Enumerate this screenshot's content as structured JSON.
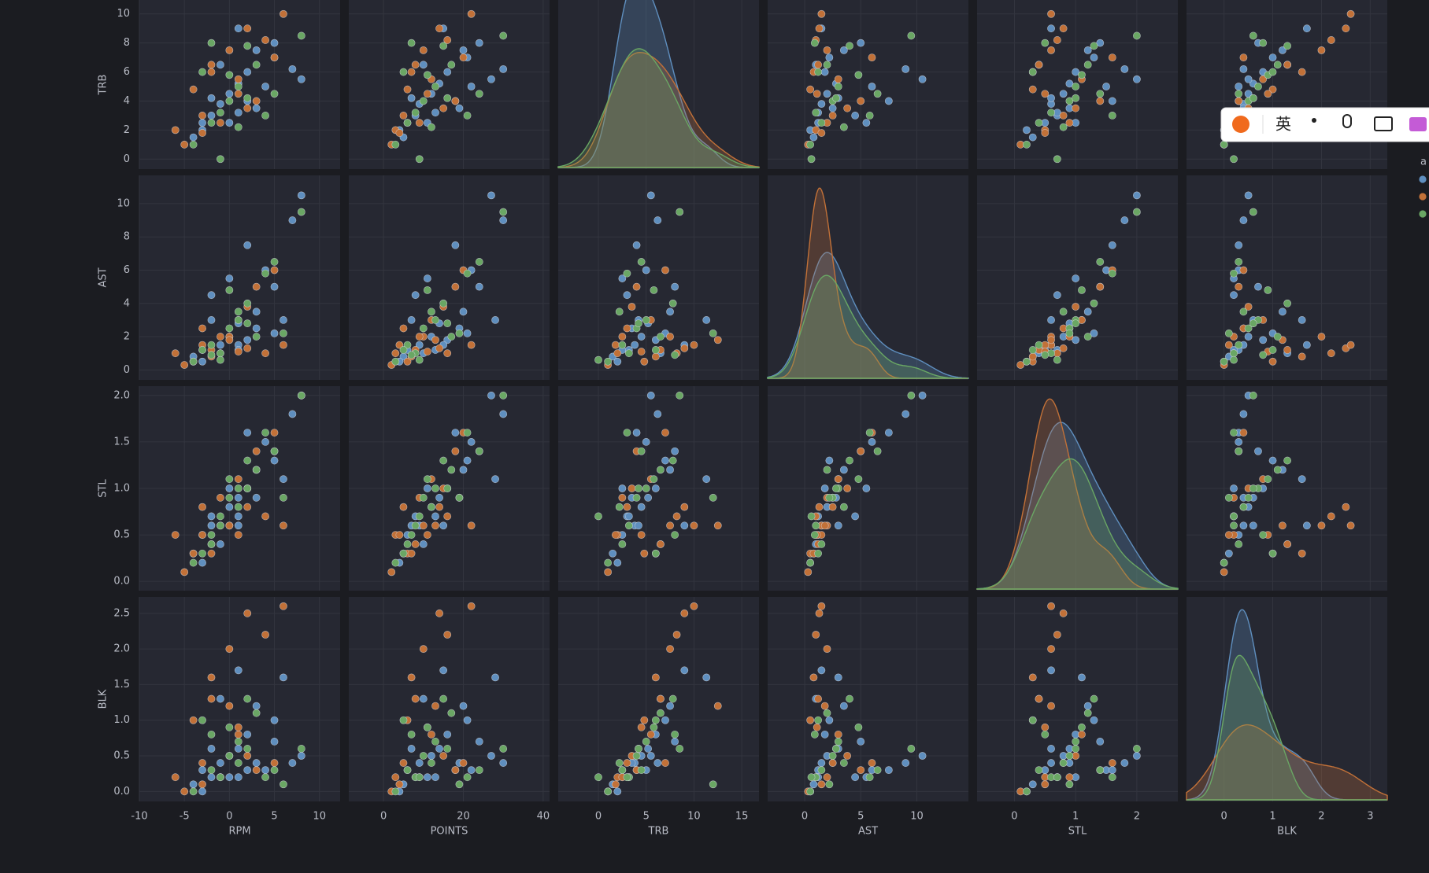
{
  "chart_data": {
    "type": "scatter",
    "diagonal": "kde",
    "grid": true,
    "legend_title": "a",
    "variables": [
      {
        "label": "RPM",
        "xlim": [
          -10,
          12.3
        ],
        "xticks": [
          -10,
          -5,
          0,
          5,
          10
        ]
      },
      {
        "label": "POINTS",
        "xlim": [
          -8.7,
          41.6
        ],
        "xticks": [
          0,
          20,
          40
        ]
      },
      {
        "label": "TRB",
        "xlim": [
          -4.2,
          16.8
        ],
        "xticks": [
          0,
          5,
          10,
          15
        ],
        "ylim": [
          -0.69,
          13.4
        ],
        "yticks": [
          0,
          2,
          4,
          6,
          8,
          10
        ]
      },
      {
        "label": "AST",
        "xlim": [
          -3.3,
          14.6
        ],
        "xticks": [
          0,
          5,
          10
        ],
        "ylim": [
          -0.6,
          11.7
        ],
        "yticks": [
          0,
          2,
          4,
          6,
          8,
          10
        ]
      },
      {
        "label": "STL",
        "xlim": [
          -0.61,
          2.67
        ],
        "xticks": [
          0,
          1,
          2
        ],
        "ylim": [
          -0.1,
          2.1
        ],
        "yticks": [
          {
            "value": 0,
            "label": "0.0"
          },
          0.5,
          {
            "value": 1,
            "label": "1.0"
          },
          1.5,
          {
            "value": 2,
            "label": "2.0"
          }
        ]
      },
      {
        "label": "BLK",
        "xlim": [
          -0.77,
          3.35
        ],
        "xticks": [
          0,
          1,
          2,
          3
        ],
        "ylim": [
          -0.14,
          2.73
        ],
        "yticks": [
          {
            "value": 0,
            "label": "0.0"
          },
          0.5,
          {
            "value": 1,
            "label": "1.0"
          },
          1.5,
          {
            "value": 2,
            "label": "2.0"
          },
          2.5
        ]
      }
    ],
    "series": [
      {
        "color": "#5f8fbf",
        "values": [
          [
            -3,
            6,
            2.5,
            1.2,
            0.5,
            0.3
          ],
          [
            -1,
            9,
            3.8,
            1.5,
            0.6,
            0.4
          ],
          [
            0,
            12,
            4.5,
            2.0,
            0.8,
            0.5
          ],
          [
            1,
            14,
            5.2,
            2.8,
            0.9,
            0.6
          ],
          [
            2,
            16,
            6.0,
            1.8,
            1.0,
            0.8
          ],
          [
            -2,
            8,
            3.0,
            4.5,
            0.7,
            0.2
          ],
          [
            3,
            20,
            7.5,
            3.5,
            1.2,
            1.2
          ],
          [
            5,
            24,
            8.0,
            5.0,
            1.4,
            0.7
          ],
          [
            6,
            28,
            11.3,
            3.0,
            1.1,
            1.6
          ],
          [
            7,
            30,
            6.2,
            9.0,
            1.8,
            0.4
          ],
          [
            4,
            22,
            5.0,
            6.0,
            1.5,
            0.3
          ],
          [
            -4,
            5,
            1.5,
            0.8,
            0.3,
            0.1
          ],
          [
            0,
            11,
            2.5,
            5.5,
            1.0,
            0.2
          ],
          [
            2,
            18,
            4.0,
            7.5,
            1.6,
            0.3
          ],
          [
            8,
            27,
            5.5,
            10.5,
            2.0,
            0.5
          ],
          [
            -1,
            10,
            6.5,
            1.0,
            0.4,
            1.3
          ],
          [
            1,
            15,
            9.0,
            1.5,
            0.6,
            1.7
          ],
          [
            -3,
            4,
            2.0,
            0.5,
            0.2,
            0.0
          ],
          [
            3,
            19,
            3.5,
            2.5,
            0.9,
            0.4
          ],
          [
            -2,
            7,
            4.2,
            3.0,
            0.6,
            0.6
          ],
          [
            5,
            21,
            7.0,
            2.2,
            1.3,
            1.0
          ],
          [
            1,
            13,
            3.2,
            1.2,
            0.7,
            0.2
          ]
        ]
      },
      {
        "color": "#c27138",
        "values": [
          [
            -6,
            3,
            2.0,
            1.0,
            0.5,
            0.2
          ],
          [
            -4,
            6,
            4.8,
            0.5,
            0.3,
            1.0
          ],
          [
            -2,
            8,
            6.5,
            1.2,
            0.4,
            1.3
          ],
          [
            0,
            10,
            7.5,
            2.0,
            0.6,
            2.0
          ],
          [
            2,
            14,
            9.0,
            1.3,
            0.8,
            2.5
          ],
          [
            6,
            22,
            10.0,
            1.5,
            0.6,
            2.6
          ],
          [
            4,
            16,
            8.2,
            1.0,
            0.7,
            2.2
          ],
          [
            -3,
            5,
            3.0,
            2.5,
            0.8,
            0.4
          ],
          [
            1,
            12,
            5.5,
            3.0,
            1.1,
            0.8
          ],
          [
            3,
            18,
            4.0,
            5.0,
            1.4,
            0.3
          ],
          [
            -1,
            9,
            2.5,
            2.0,
            0.9,
            0.2
          ],
          [
            -5,
            2,
            1.0,
            0.3,
            0.1,
            0.0
          ],
          [
            0,
            13,
            12.5,
            1.8,
            0.6,
            1.2
          ],
          [
            2,
            15,
            3.5,
            3.8,
            1.0,
            0.5
          ],
          [
            -2,
            7,
            6.0,
            0.8,
            0.3,
            1.6
          ],
          [
            5,
            20,
            7.0,
            6.0,
            1.6,
            0.4
          ],
          [
            -3,
            4,
            1.8,
            1.5,
            0.5,
            0.1
          ],
          [
            1,
            11,
            4.5,
            1.1,
            0.5,
            0.9
          ]
        ]
      },
      {
        "color": "#6aa764",
        "values": [
          [
            -2,
            6,
            2.5,
            1.5,
            0.4,
            0.3
          ],
          [
            0,
            10,
            4.0,
            2.5,
            0.9,
            0.5
          ],
          [
            1,
            13,
            5.0,
            3.0,
            1.0,
            0.7
          ],
          [
            3,
            17,
            6.5,
            2.0,
            1.2,
            1.1
          ],
          [
            -1,
            8,
            3.2,
            1.0,
            0.6,
            0.2
          ],
          [
            8,
            30,
            8.5,
            9.5,
            2.0,
            0.6
          ],
          [
            5,
            24,
            4.5,
            6.5,
            1.4,
            0.3
          ],
          [
            2,
            15,
            7.8,
            4.0,
            1.3,
            1.3
          ],
          [
            -4,
            3,
            1.0,
            0.5,
            0.2,
            0.0
          ],
          [
            0,
            11,
            5.8,
            4.8,
            1.1,
            0.9
          ],
          [
            4,
            21,
            3.0,
            5.8,
            1.6,
            0.2
          ],
          [
            -2,
            7,
            8.0,
            0.9,
            0.5,
            0.8
          ],
          [
            1,
            12,
            2.2,
            3.5,
            0.8,
            0.4
          ],
          [
            6,
            19,
            12.0,
            2.2,
            0.9,
            0.1
          ],
          [
            -3,
            5,
            6.0,
            1.2,
            0.3,
            1.0
          ],
          [
            2,
            16,
            4.2,
            2.8,
            1.0,
            0.6
          ],
          [
            -1,
            9,
            0.0,
            0.6,
            0.7,
            0.2
          ]
        ]
      }
    ]
  },
  "overlay": {
    "ime_label": "英"
  }
}
